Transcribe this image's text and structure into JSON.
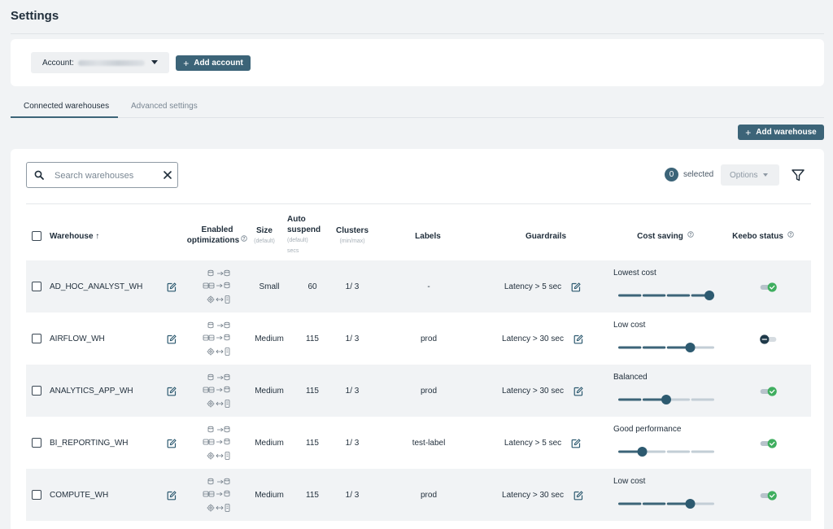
{
  "page": {
    "title": "Settings"
  },
  "account": {
    "label": "Account:",
    "add_label": "Add account"
  },
  "tabs": [
    {
      "label": "Connected warehouses",
      "active": true
    },
    {
      "label": "Advanced settings",
      "active": false
    }
  ],
  "add_warehouse_label": "Add warehouse",
  "search": {
    "placeholder": "Search warehouses",
    "value": ""
  },
  "selection": {
    "count": "0",
    "label": "selected"
  },
  "options_label": "Options",
  "table": {
    "headers": {
      "warehouse": "Warehouse ↑",
      "enabled_line1": "Enabled",
      "enabled_line2": "optimizations",
      "size": "Size",
      "size_sub": "(default)",
      "auto_line1": "Auto",
      "auto_line2": "suspend",
      "auto_sub1": "(default)",
      "auto_sub2": "secs",
      "clusters": "Clusters",
      "clusters_sub": "(min/max)",
      "labels": "Labels",
      "guardrails": "Guardrails",
      "cost_saving": "Cost saving",
      "keebo_status": "Keebo status"
    },
    "rows": [
      {
        "name": "AD_HOC_ANALYST_WH",
        "size": "Small",
        "auto_suspend": "60",
        "clusters": "1/ 3",
        "labels": "-",
        "guardrail": "Latency > 5 sec",
        "saving_label": "Lowest cost",
        "saving_level": 1.0,
        "status": "on"
      },
      {
        "name": "AIRFLOW_WH",
        "size": "Medium",
        "auto_suspend": "115",
        "clusters": "1/ 3",
        "labels": "prod",
        "guardrail": "Latency > 30 sec",
        "saving_label": "Low cost",
        "saving_level": 0.75,
        "status": "off"
      },
      {
        "name": "ANALYTICS_APP_WH",
        "size": "Medium",
        "auto_suspend": "115",
        "clusters": "1/ 3",
        "labels": "prod",
        "guardrail": "Latency > 30 sec",
        "saving_label": "Balanced",
        "saving_level": 0.5,
        "status": "on"
      },
      {
        "name": "BI_REPORTING_WH",
        "size": "Medium",
        "auto_suspend": "115",
        "clusters": "1/ 3",
        "labels": "test-label",
        "guardrail": "Latency > 5 sec",
        "saving_label": "Good performance",
        "saving_level": 0.25,
        "status": "on"
      },
      {
        "name": "COMPUTE_WH",
        "size": "Medium",
        "auto_suspend": "115",
        "clusters": "1/ 3",
        "labels": "prod",
        "guardrail": "Latency > 30 sec",
        "saving_label": "Low cost",
        "saving_level": 0.75,
        "status": "on"
      }
    ]
  },
  "colors": {
    "primary": "#3c6478",
    "success": "#3fae5f",
    "track": "#c3ced6",
    "row_shade": "#f1f3f5"
  }
}
